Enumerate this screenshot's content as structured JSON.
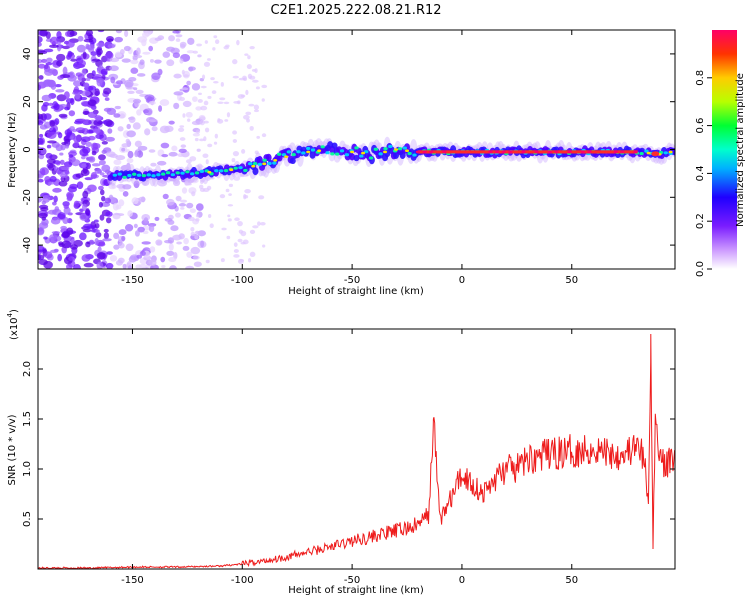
{
  "figure": {
    "title": "C2E1.2025.222.08.21.R12"
  },
  "chart_data": [
    {
      "type": "heatmap",
      "panel": "top",
      "xlabel": "Height of straight line (km)",
      "ylabel": "Frequency (Hz)",
      "xlim": [
        -193,
        97
      ],
      "ylim": [
        -50,
        50
      ],
      "x_ticks": [
        "-150",
        "-100",
        "-50",
        "0",
        "50"
      ],
      "x_tick_values": [
        -150,
        -100,
        -50,
        0,
        50
      ],
      "y_ticks": [
        "-40",
        "-20",
        "0",
        "20",
        "40"
      ],
      "y_tick_values": [
        -40,
        -20,
        0,
        20,
        40
      ],
      "ridge": {
        "description_points_x": [
          -160,
          -150,
          -140,
          -130,
          -120,
          -110,
          -100,
          -90,
          -80,
          -70,
          -60,
          -50,
          -40,
          -30,
          -20,
          -10,
          0,
          10,
          20,
          30,
          40,
          50,
          60,
          70,
          80,
          90,
          95
        ],
        "description_points_y": [
          -11,
          -11,
          -11,
          -10,
          -10,
          -9,
          -8,
          -6,
          -3,
          -1,
          0,
          -1,
          -2,
          0,
          -1,
          -1,
          -1,
          -1,
          -1,
          -1,
          -1,
          -1,
          -1,
          -1,
          -1,
          -2,
          -1
        ],
        "peak_amplitude_zone_x": [
          -20,
          80
        ]
      },
      "colorbar": {
        "label": "Normalized spectral amplitude",
        "range": [
          0,
          1
        ],
        "ticks": [
          "0.0",
          "0.2",
          "0.4",
          "0.6",
          "0.8"
        ],
        "tick_values": [
          0.0,
          0.2,
          0.4,
          0.6,
          0.8
        ],
        "colors": [
          "#ffffff",
          "#9933ff",
          "#3300ff",
          "#00ccff",
          "#00ff66",
          "#ccff00",
          "#ffcc00",
          "#ff3300",
          "#ff0066"
        ]
      },
      "grid": false
    },
    {
      "type": "line",
      "panel": "bottom",
      "xlabel": "Height of straight line (km)",
      "ylabel": "SNR (10 * v/v)",
      "multiplier_label": "(x10",
      "multiplier_exp": "4",
      "xlim": [
        -193,
        97
      ],
      "ylim": [
        0,
        2.4
      ],
      "x_ticks": [
        "-150",
        "-100",
        "-50",
        "0",
        "50"
      ],
      "x_tick_values": [
        -150,
        -100,
        -50,
        0,
        50
      ],
      "y_ticks": [
        "0.5",
        "1.0",
        "1.5",
        "2.0"
      ],
      "y_tick_values": [
        0.5,
        1.0,
        1.5,
        2.0
      ],
      "line_color": "#ee1c1c",
      "series": [
        {
          "x": [
            -193,
            -170,
            -150,
            -130,
            -110,
            -100,
            -90,
            -80,
            -70,
            -60,
            -50,
            -40,
            -30,
            -20,
            -15,
            -13,
            -10,
            -5,
            0,
            5,
            10,
            15,
            20,
            25,
            30,
            40,
            50,
            60,
            70,
            75,
            80,
            83,
            85,
            86,
            87,
            88,
            90,
            92,
            95,
            97
          ],
          "values": [
            0.01,
            0.01,
            0.02,
            0.02,
            0.03,
            0.05,
            0.08,
            0.12,
            0.17,
            0.22,
            0.28,
            0.33,
            0.38,
            0.44,
            0.55,
            1.5,
            0.5,
            0.7,
            0.95,
            0.85,
            0.75,
            0.9,
            1.0,
            1.0,
            1.1,
            1.15,
            1.18,
            1.2,
            1.15,
            1.18,
            1.2,
            1.1,
            0.6,
            2.35,
            0.2,
            1.5,
            1.2,
            1.0,
            1.1,
            1.15
          ]
        }
      ],
      "grid": false
    }
  ]
}
